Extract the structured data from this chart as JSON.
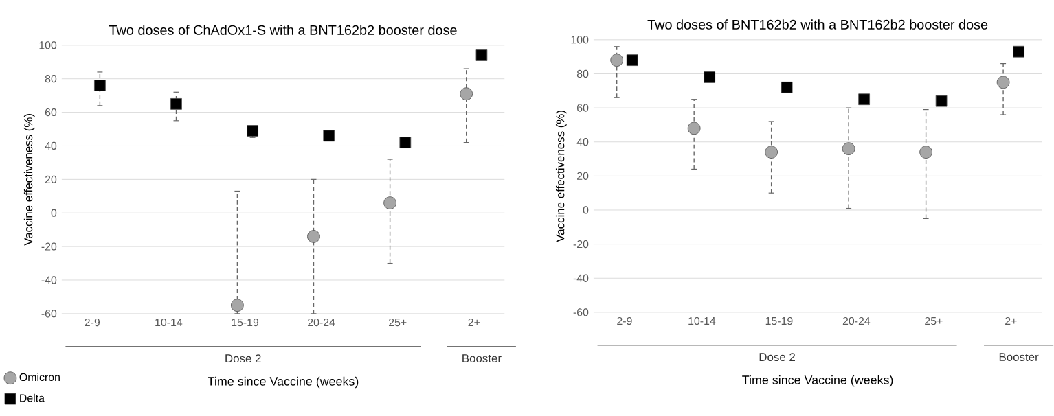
{
  "chart_data": [
    {
      "type": "scatter",
      "title": "Two doses of ChAdOx1-S with a BNT162b2 booster dose",
      "xlabel": "Time since Vaccine (weeks)",
      "ylabel": "Vaccine effectiveness (%)",
      "categories": [
        "2-9",
        "10-14",
        "15-19",
        "20-24",
        "25+",
        "2+"
      ],
      "series": [
        {
          "name": "Omicron",
          "color": "#a6a6a6",
          "marker": "circle",
          "values": [
            null,
            null,
            -55,
            -14,
            6,
            71
          ],
          "errors": [
            null,
            null,
            [
              -60,
              13
            ],
            [
              -60,
              20
            ],
            [
              -30,
              32
            ],
            [
              42,
              86
            ]
          ]
        },
        {
          "name": "Delta",
          "color": "#000000",
          "marker": "square",
          "values": [
            76,
            65,
            49,
            46,
            42,
            94
          ],
          "errors": [
            [
              64,
              84
            ],
            [
              55,
              72
            ],
            [
              45,
              51
            ],
            null,
            null,
            null
          ]
        }
      ],
      "ylim": [
        -60,
        100
      ],
      "yticks": [
        -60,
        -40,
        -20,
        0,
        20,
        40,
        60,
        80,
        100
      ],
      "grid": "y",
      "legend": "bottom left",
      "annotations": [
        "Dose 2",
        "Booster"
      ]
    },
    {
      "type": "scatter",
      "title": "Two doses of BNT162b2 with a BNT162b2 booster dose",
      "xlabel": "Time since Vaccine (weeks)",
      "ylabel": "Vaccine effectiveness (%)",
      "categories": [
        "2-9",
        "10-14",
        "15-19",
        "20-24",
        "25+",
        "2+"
      ],
      "series": [
        {
          "color": "#a6a6a6",
          "marker": "circle",
          "values": [
            88,
            48,
            34,
            36,
            34,
            75
          ],
          "errors": [
            [
              66,
              96
            ],
            [
              24,
              65
            ],
            [
              10,
              52
            ],
            [
              1,
              60
            ],
            [
              -5,
              59
            ],
            [
              56,
              86
            ]
          ]
        },
        {
          "color": "#000000",
          "marker": "square",
          "values": [
            88,
            78,
            72,
            65,
            64,
            93
          ],
          "errors": [
            null,
            null,
            null,
            null,
            null,
            null
          ]
        }
      ],
      "ylim": [
        -60,
        100
      ],
      "yticks": [
        -60,
        -40,
        -20,
        0,
        20,
        40,
        60,
        80,
        100
      ],
      "grid": "y",
      "annotations": [
        "Dose 2",
        "Booster"
      ]
    }
  ]
}
